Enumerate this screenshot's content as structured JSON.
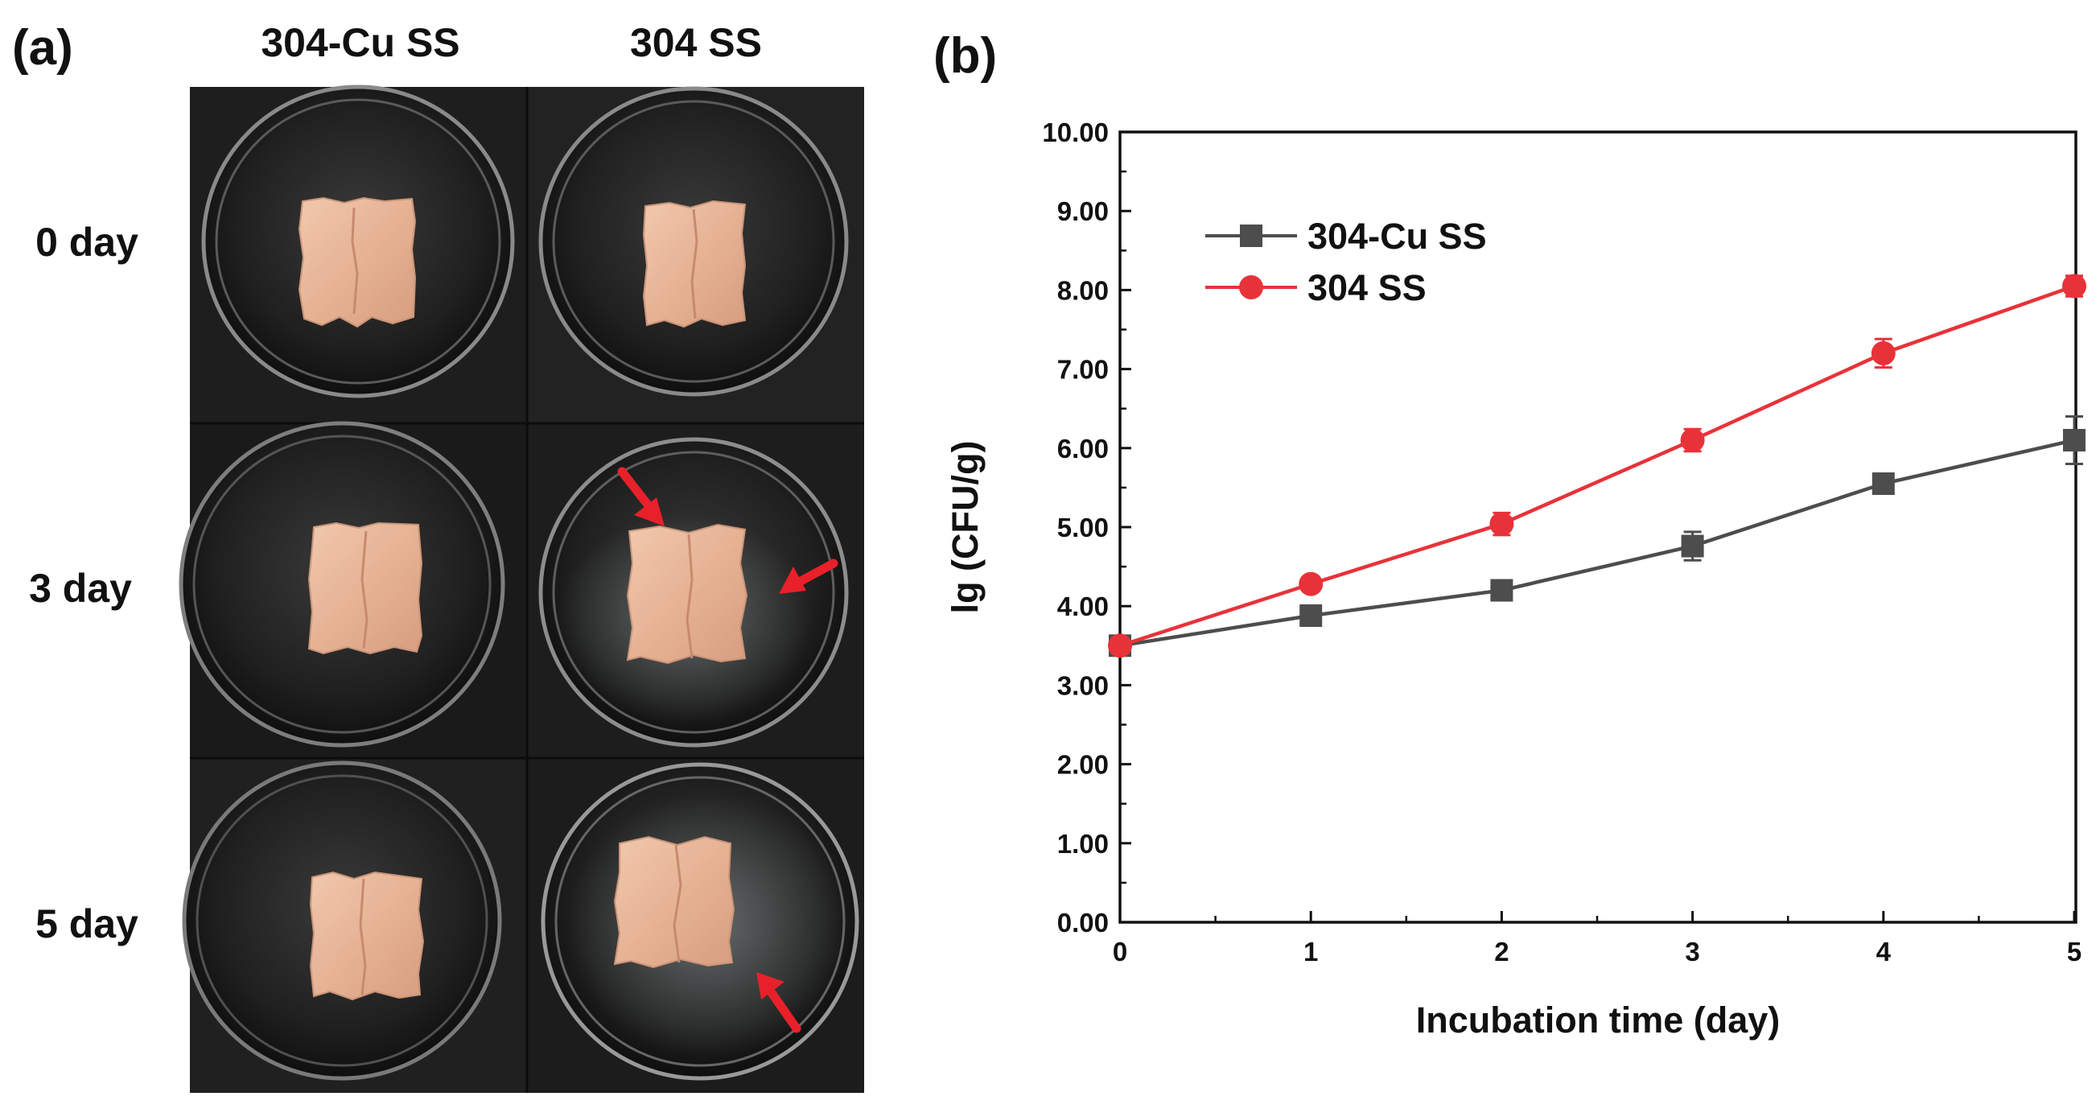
{
  "panel_a": {
    "label": "(a)",
    "columns": [
      "304-Cu SS",
      "304 SS"
    ],
    "rows": [
      "0 day",
      "3 day",
      "5 day"
    ]
  },
  "panel_b": {
    "label": "(b)"
  },
  "colors": {
    "series_cu": "#4d4d4d",
    "series_ss": "#e8323a",
    "arrow": "#e8202a",
    "photo_bg": "#1b1b1b",
    "meat": "#e9b79a"
  },
  "chart_data": {
    "type": "line",
    "title": "",
    "xlabel": "Incubation time (day)",
    "ylabel": "lg (CFU/g)",
    "x": [
      0,
      1,
      2,
      3,
      4,
      5
    ],
    "xlim": [
      0,
      5
    ],
    "ylim": [
      0,
      10
    ],
    "xticks": [
      "0",
      "1",
      "2",
      "3",
      "4",
      "5"
    ],
    "yticks": [
      "0.00",
      "1.00",
      "2.00",
      "3.00",
      "4.00",
      "5.00",
      "6.00",
      "7.00",
      "8.00",
      "9.00",
      "10.00"
    ],
    "grid": false,
    "legend_position": "top-left",
    "series": [
      {
        "name": "304-Cu SS",
        "marker": "square",
        "color": "#4d4d4d",
        "values": [
          3.5,
          3.88,
          4.2,
          4.76,
          5.55,
          6.1
        ],
        "errors": [
          0.08,
          0.07,
          0.08,
          0.18,
          0.07,
          0.3
        ]
      },
      {
        "name": "304 SS",
        "marker": "circle",
        "color": "#e8323a",
        "values": [
          3.5,
          4.28,
          5.04,
          6.1,
          7.2,
          8.05
        ],
        "errors": [
          0.08,
          0.07,
          0.14,
          0.14,
          0.18,
          0.13
        ]
      }
    ]
  }
}
